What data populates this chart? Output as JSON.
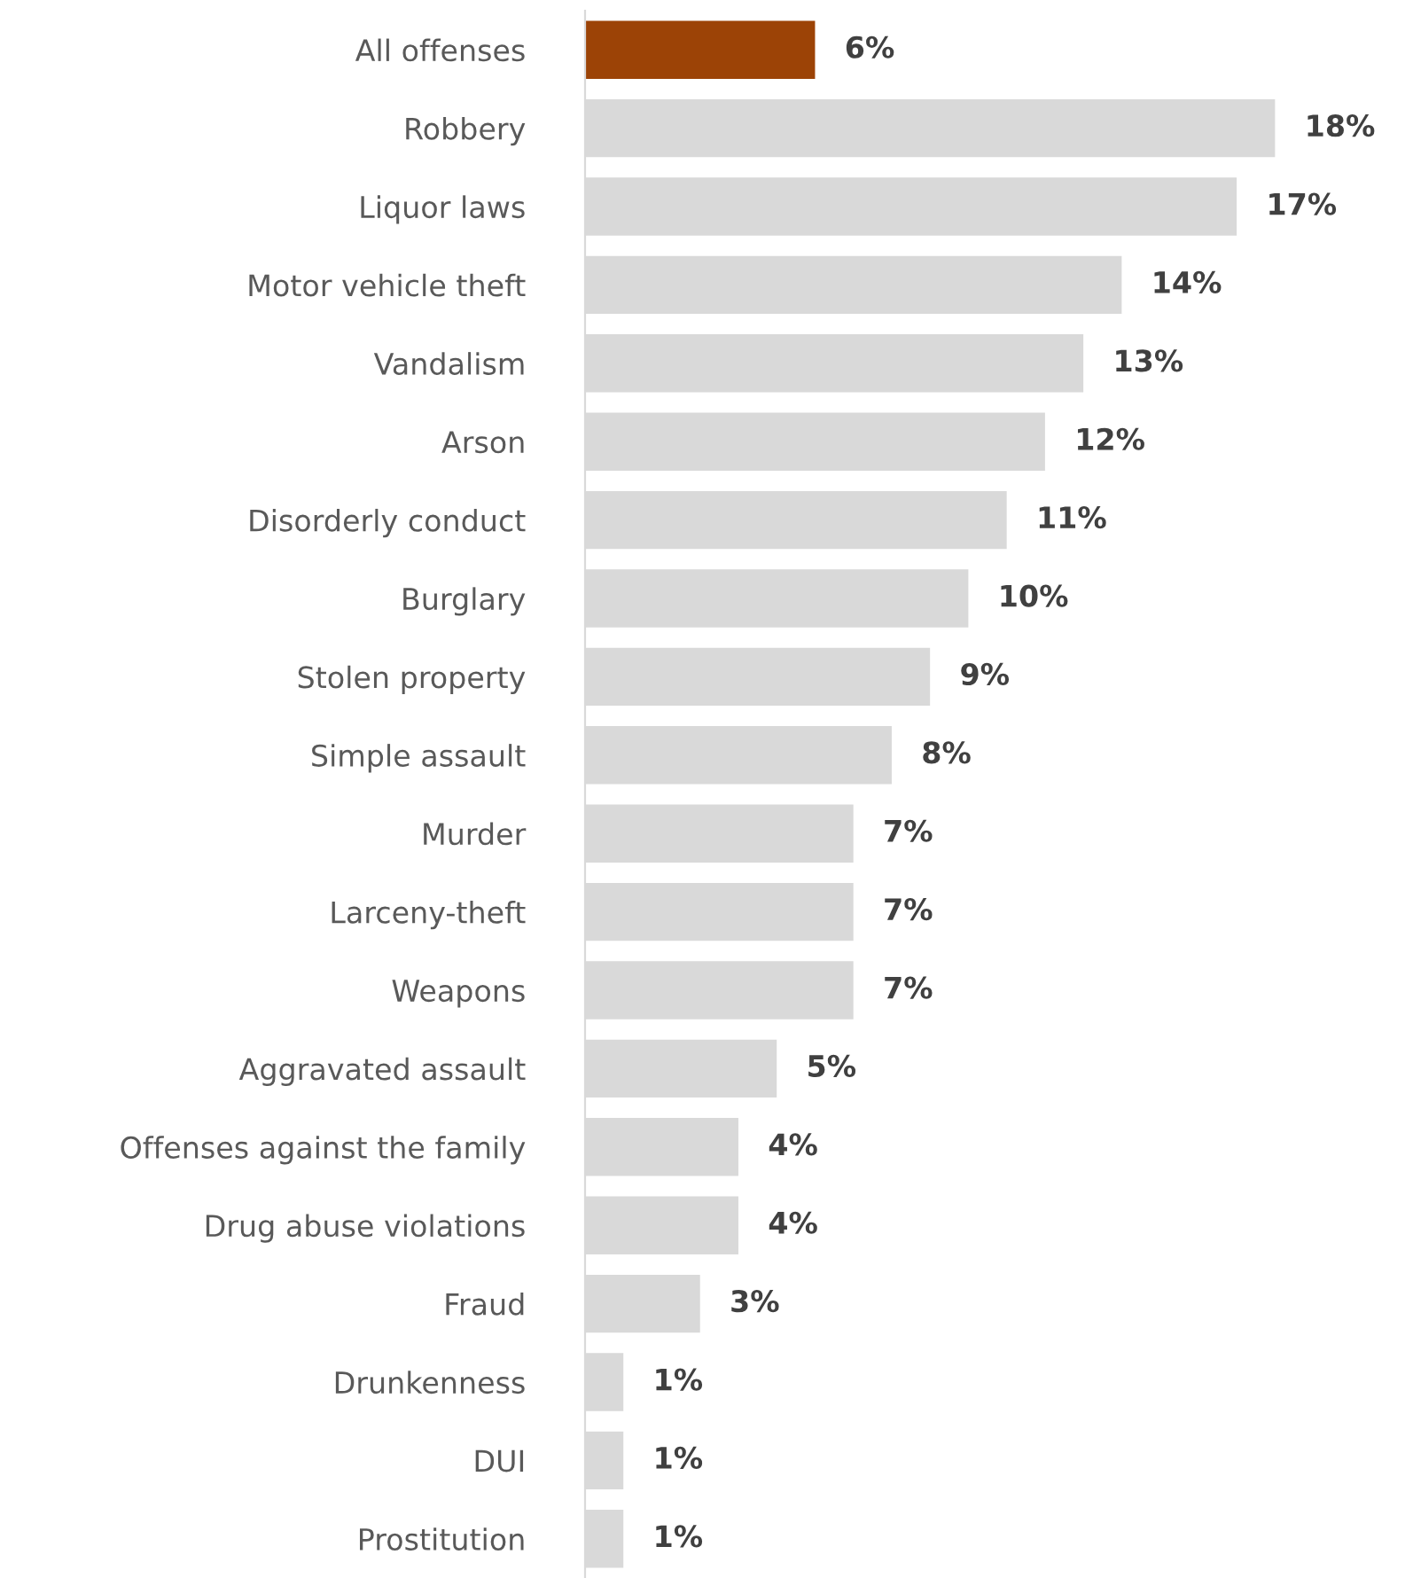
{
  "chart_data": {
    "type": "bar",
    "orientation": "horizontal",
    "categories": [
      "All offenses",
      "Robbery",
      "Liquor laws",
      "Motor vehicle theft",
      "Vandalism",
      "Arson",
      "Disorderly conduct",
      "Burglary",
      "Stolen property",
      "Simple assault",
      "Murder",
      "Larceny-theft",
      "Weapons",
      "Aggravated assault",
      "Offenses against the family",
      "Drug abuse violations",
      "Fraud",
      "Drunkenness",
      "DUI",
      "Prostitution"
    ],
    "values": [
      6,
      18,
      17,
      14,
      13,
      12,
      11,
      10,
      9,
      8,
      7,
      7,
      7,
      5,
      4,
      4,
      3,
      1,
      1,
      1
    ],
    "value_labels": [
      "6%",
      "18%",
      "17%",
      "14%",
      "13%",
      "12%",
      "11%",
      "10%",
      "9%",
      "8%",
      "7%",
      "7%",
      "7%",
      "5%",
      "4%",
      "4%",
      "3%",
      "1%",
      "1%",
      "1%"
    ],
    "colors": [
      "#9c4306",
      "#d9d9d9",
      "#d9d9d9",
      "#d9d9d9",
      "#d9d9d9",
      "#d9d9d9",
      "#d9d9d9",
      "#d9d9d9",
      "#d9d9d9",
      "#d9d9d9",
      "#d9d9d9",
      "#d9d9d9",
      "#d9d9d9",
      "#d9d9d9",
      "#d9d9d9",
      "#d9d9d9",
      "#d9d9d9",
      "#d9d9d9",
      "#d9d9d9",
      "#d9d9d9"
    ],
    "grid": false,
    "legend": false
  }
}
